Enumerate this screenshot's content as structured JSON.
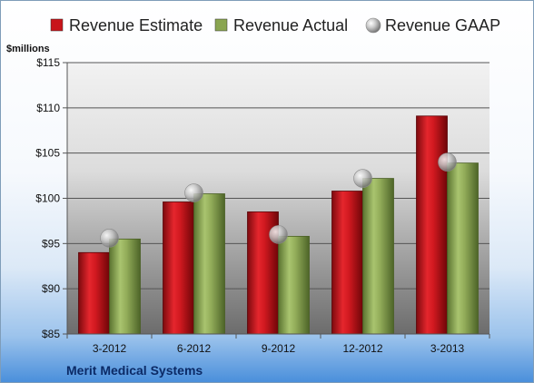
{
  "chart_data": {
    "type": "bar",
    "unit_label": "$millions",
    "company": "Merit Medical Systems",
    "categories": [
      "3-2012",
      "6-2012",
      "9-2012",
      "12-2012",
      "3-2013"
    ],
    "series": [
      {
        "name": "Revenue Estimate",
        "type": "bar",
        "color": "#c8141a",
        "values": [
          94.0,
          99.6,
          98.5,
          100.8,
          109.1
        ]
      },
      {
        "name": "Revenue Actual",
        "type": "bar",
        "color": "#8aa550",
        "values": [
          95.5,
          100.5,
          95.8,
          102.2,
          103.9
        ]
      },
      {
        "name": "Revenue GAAP",
        "type": "scatter",
        "color": "#c7c7c7",
        "values": [
          95.6,
          100.6,
          96.0,
          102.2,
          104.0
        ]
      }
    ],
    "ylim": [
      85,
      115
    ],
    "yticks": [
      85,
      90,
      95,
      100,
      105,
      110,
      115
    ],
    "ytick_labels": [
      "$85",
      "$90",
      "$95",
      "$100",
      "$105",
      "$110",
      "$115"
    ],
    "grid": true,
    "legend_position": "top"
  }
}
